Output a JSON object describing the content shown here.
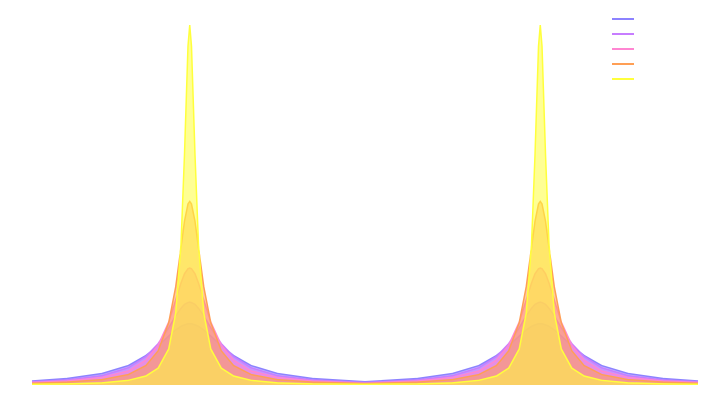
{
  "chart_data": {
    "type": "area",
    "legend": "upper right",
    "x": [
      -1.9,
      -1.7,
      -1.5,
      -1.35,
      -1.25,
      -1.18,
      -1.12,
      -1.08,
      -1.05,
      -1.03,
      -1.01,
      -1,
      -0.99,
      -0.97,
      -0.95,
      -0.92,
      -0.88,
      -0.82,
      -0.75,
      -0.65,
      -0.5,
      -0.3,
      0,
      0.3,
      0.5,
      0.65,
      0.75,
      0.82,
      0.88,
      0.92,
      0.95,
      0.97,
      0.99,
      1,
      1.01,
      1.03,
      1.05,
      1.08,
      1.12,
      1.18,
      1.25,
      1.35,
      1.5,
      1.7,
      1.9
    ],
    "xlim": [
      -1.9,
      1.9
    ],
    "ylim": [
      0,
      1
    ],
    "series": [
      {
        "color": "#8c82ff",
        "values": [
          0.011,
          0.018,
          0.032,
          0.054,
          0.082,
          0.109,
          0.136,
          0.153,
          0.163,
          0.167,
          0.17,
          0.17,
          0.17,
          0.167,
          0.163,
          0.153,
          0.136,
          0.109,
          0.082,
          0.054,
          0.032,
          0.018,
          0.009,
          0.018,
          0.032,
          0.054,
          0.082,
          0.109,
          0.136,
          0.153,
          0.163,
          0.167,
          0.17,
          0.17,
          0.17,
          0.167,
          0.163,
          0.153,
          0.136,
          0.109,
          0.082,
          0.054,
          0.032,
          0.018,
          0.011
        ]
      },
      {
        "color": "#c77dff",
        "values": [
          0.009,
          0.014,
          0.026,
          0.048,
          0.079,
          0.115,
          0.159,
          0.192,
          0.213,
          0.224,
          0.229,
          0.23,
          0.229,
          0.224,
          0.213,
          0.192,
          0.159,
          0.115,
          0.079,
          0.048,
          0.026,
          0.014,
          0.007,
          0.014,
          0.026,
          0.048,
          0.079,
          0.115,
          0.159,
          0.192,
          0.213,
          0.224,
          0.229,
          0.23,
          0.229,
          0.224,
          0.213,
          0.192,
          0.159,
          0.115,
          0.079,
          0.048,
          0.026,
          0.014,
          0.009
        ]
      },
      {
        "color": "#ff86d2",
        "values": [
          0.007,
          0.011,
          0.021,
          0.039,
          0.069,
          0.111,
          0.175,
          0.236,
          0.283,
          0.309,
          0.323,
          0.325,
          0.323,
          0.309,
          0.283,
          0.236,
          0.175,
          0.111,
          0.069,
          0.039,
          0.021,
          0.011,
          0.005,
          0.011,
          0.021,
          0.039,
          0.069,
          0.111,
          0.175,
          0.236,
          0.283,
          0.309,
          0.323,
          0.325,
          0.323,
          0.309,
          0.283,
          0.236,
          0.175,
          0.111,
          0.069,
          0.039,
          0.021,
          0.011,
          0.007
        ]
      },
      {
        "color": "#ff9f55",
        "values": [
          0.005,
          0.008,
          0.015,
          0.029,
          0.054,
          0.095,
          0.173,
          0.273,
          0.381,
          0.455,
          0.503,
          0.51,
          0.503,
          0.455,
          0.381,
          0.273,
          0.173,
          0.095,
          0.054,
          0.029,
          0.015,
          0.008,
          0.004,
          0.008,
          0.015,
          0.029,
          0.054,
          0.095,
          0.173,
          0.273,
          0.381,
          0.455,
          0.503,
          0.51,
          0.503,
          0.455,
          0.381,
          0.273,
          0.173,
          0.095,
          0.054,
          0.029,
          0.015,
          0.008,
          0.005
        ]
      },
      {
        "color": "#ffff3c",
        "values": [
          0.002,
          0.003,
          0.006,
          0.013,
          0.025,
          0.047,
          0.1,
          0.2,
          0.39,
          0.64,
          0.941,
          1,
          0.941,
          0.64,
          0.39,
          0.2,
          0.1,
          0.047,
          0.025,
          0.013,
          0.006,
          0.003,
          0.002,
          0.003,
          0.006,
          0.013,
          0.025,
          0.047,
          0.1,
          0.2,
          0.39,
          0.64,
          0.941,
          1,
          0.941,
          0.64,
          0.39,
          0.2,
          0.1,
          0.047,
          0.025,
          0.013,
          0.006,
          0.003,
          0.002
        ]
      }
    ]
  }
}
